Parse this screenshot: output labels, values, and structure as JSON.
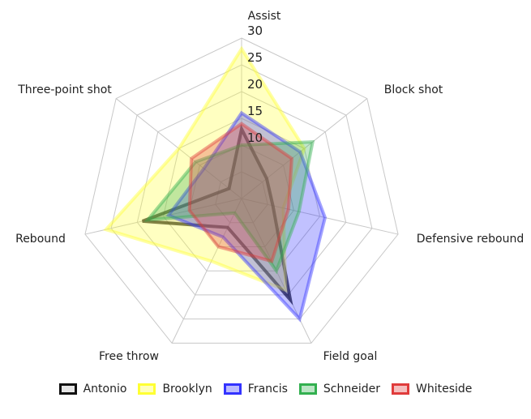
{
  "chart_data": {
    "type": "radar",
    "axes": [
      "Assist",
      "Block shot",
      "Defensive rebound",
      "Field goal",
      "Free throw",
      "Rebound",
      "Three-point shot"
    ],
    "range": [
      0,
      30
    ],
    "ticks": [
      10,
      15,
      20,
      25,
      30
    ],
    "tick_labels": [
      "10",
      "15",
      "20",
      "25",
      "30"
    ],
    "grid": true,
    "legend_position": "bottom",
    "series": [
      {
        "name": "Antonio",
        "color": "#000000",
        "values": [
          13,
          6,
          6,
          21,
          6,
          19,
          3
        ]
      },
      {
        "name": "Brooklyn",
        "color": "#ffff33",
        "values": [
          28,
          15,
          8,
          19,
          13,
          26,
          15
        ]
      },
      {
        "name": "Francis",
        "color": "#3333ff",
        "values": [
          16,
          14,
          16,
          25,
          8,
          14,
          9
        ]
      },
      {
        "name": "Schneider",
        "color": "#33b050",
        "values": [
          10,
          17,
          11,
          15,
          3,
          18,
          11
        ]
      },
      {
        "name": "Whiteside",
        "color": "#e03c3c",
        "values": [
          14,
          12,
          9,
          13,
          10,
          10,
          12
        ]
      }
    ]
  }
}
